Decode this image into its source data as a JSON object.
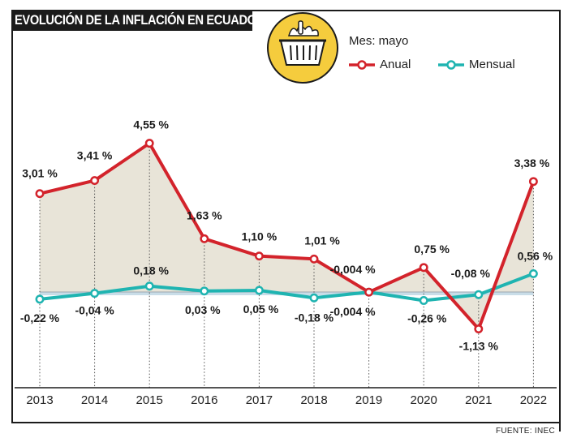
{
  "header": {
    "title": "EVOLUCIÓN DE LA INFLACIÓN EN ECUADOR",
    "subtitle": "Mes: mayo",
    "source": "FUENTE: INEC",
    "basket_icon": "shopping-basket-icon"
  },
  "colors": {
    "anual": "#d3232b",
    "mensual": "#1fb4b1",
    "area_fill": "#e8e4d8",
    "mensual_fill": "#c9dde8",
    "title_bg": "#1b1b1b",
    "basket_circle": "#f5cc3d"
  },
  "chart_data": {
    "type": "line",
    "categories": [
      "2013",
      "2014",
      "2015",
      "2016",
      "2017",
      "2018",
      "2019",
      "2020",
      "2021",
      "2022"
    ],
    "series": [
      {
        "name": "Anual",
        "values": [
          3.01,
          3.41,
          4.55,
          1.63,
          1.1,
          1.01,
          -0.004,
          0.75,
          -1.13,
          3.38
        ],
        "labels": [
          "3,01 %",
          "3,41 %",
          "4,55 %",
          "1,63 %",
          "1,10 %",
          "1,01 %",
          "-0,004 %",
          "0,75 %",
          "-1,13 %",
          "3,38 %"
        ]
      },
      {
        "name": "Mensual",
        "values": [
          -0.22,
          -0.04,
          0.18,
          0.03,
          0.05,
          -0.18,
          -0.004,
          -0.26,
          -0.08,
          0.56
        ],
        "labels": [
          "-0,22 %",
          "-0,04 %",
          "0,18 %",
          "0,03 %",
          "0,05 %",
          "-0,18 %",
          "-0,004 %",
          "-0,26 %",
          "-0,08 %",
          "0,56 %"
        ]
      }
    ],
    "title": "EVOLUCIÓN DE LA INFLACIÓN EN ECUADOR",
    "xlabel": "",
    "ylabel": "",
    "ylim": [
      -1.5,
      5
    ],
    "grid": false,
    "legend": "top-right"
  }
}
